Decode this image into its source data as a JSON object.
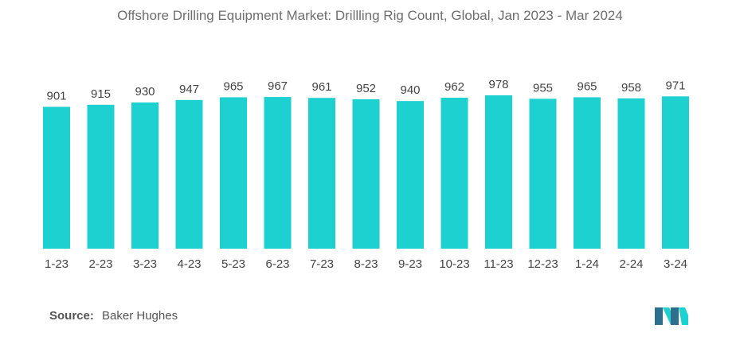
{
  "title": "Offshore Drilling Equipment Market: Drillling Rig Count, Global, Jan 2023 - Mar 2024",
  "source": {
    "label": "Source:",
    "value": "Baker Hughes"
  },
  "colors": {
    "bar": "#1dd1d1",
    "text": "#444444",
    "title": "#6e6e6e"
  },
  "chart_data": {
    "type": "bar",
    "title": "Offshore Drilling Equipment Market: Drillling Rig Count, Global, Jan 2023 - Mar 2024",
    "xlabel": "",
    "ylabel": "",
    "categories": [
      "1-23",
      "2-23",
      "3-23",
      "4-23",
      "5-23",
      "6-23",
      "7-23",
      "8-23",
      "9-23",
      "10-23",
      "11-23",
      "12-23",
      "1-24",
      "2-24",
      "3-24"
    ],
    "values": [
      901,
      915,
      930,
      947,
      965,
      967,
      961,
      952,
      940,
      962,
      978,
      955,
      965,
      958,
      971
    ],
    "data_labels": true,
    "grid": false,
    "legend": "none"
  }
}
